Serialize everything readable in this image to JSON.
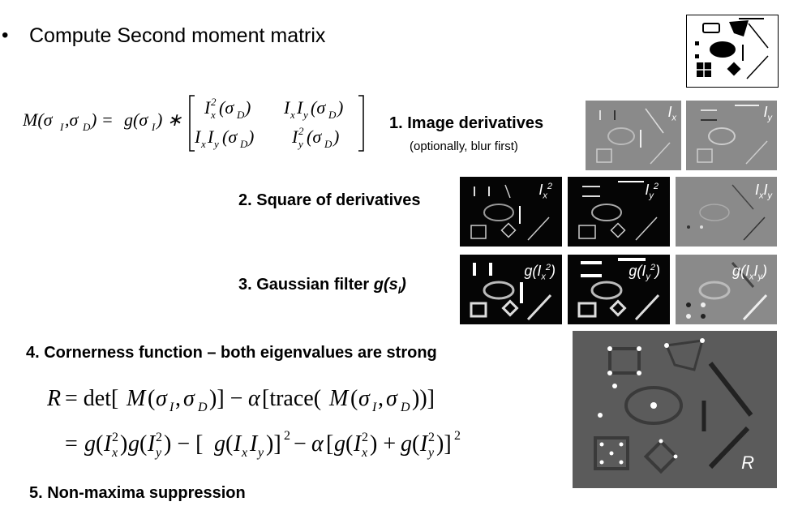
{
  "bullet": "•",
  "title": "Compute Second moment matrix",
  "steps": {
    "s1": "1. Image derivatives",
    "s1_note": "(optionally, blur first)",
    "s2": "2. Square of derivatives",
    "s3_prefix": "3. Gaussian filter ",
    "s3_g": "g(s",
    "s3_sub": "I",
    "s3_close": ")",
    "s4": "4. Cornerness function – both eigenvalues are strong",
    "s5": "5. Non-maxima suppression"
  },
  "thumb_labels": {
    "ix": "I",
    "ix_sub": "x",
    "iy": "I",
    "iy_sub": "y",
    "ix2": "I",
    "ix2_sub": "x",
    "ix2_sup": "2",
    "iy2": "I",
    "iy2_sub": "y",
    "iy2_sup": "2",
    "ixiy_a": "I",
    "ixiy_a_sub": "x",
    "ixiy_b": "I",
    "ixiy_b_sub": "y",
    "gix2_pre": "g(I",
    "gix2_sub": "x",
    "gix2_sup": "2",
    "gix2_post": ")",
    "giy2_pre": "g(I",
    "giy2_sub": "y",
    "giy2_sup": "2",
    "giy2_post": ")",
    "gixiy_pre": "g(I",
    "gixiy_sub1": "x",
    "gixiy_mid": "I",
    "gixiy_sub2": "y",
    "gixiy_post": ")",
    "r": "R"
  },
  "colors": {
    "gray_bg": "#8a8a8a",
    "dark_bg": "#050505",
    "r_bg": "#5b5b5b"
  }
}
